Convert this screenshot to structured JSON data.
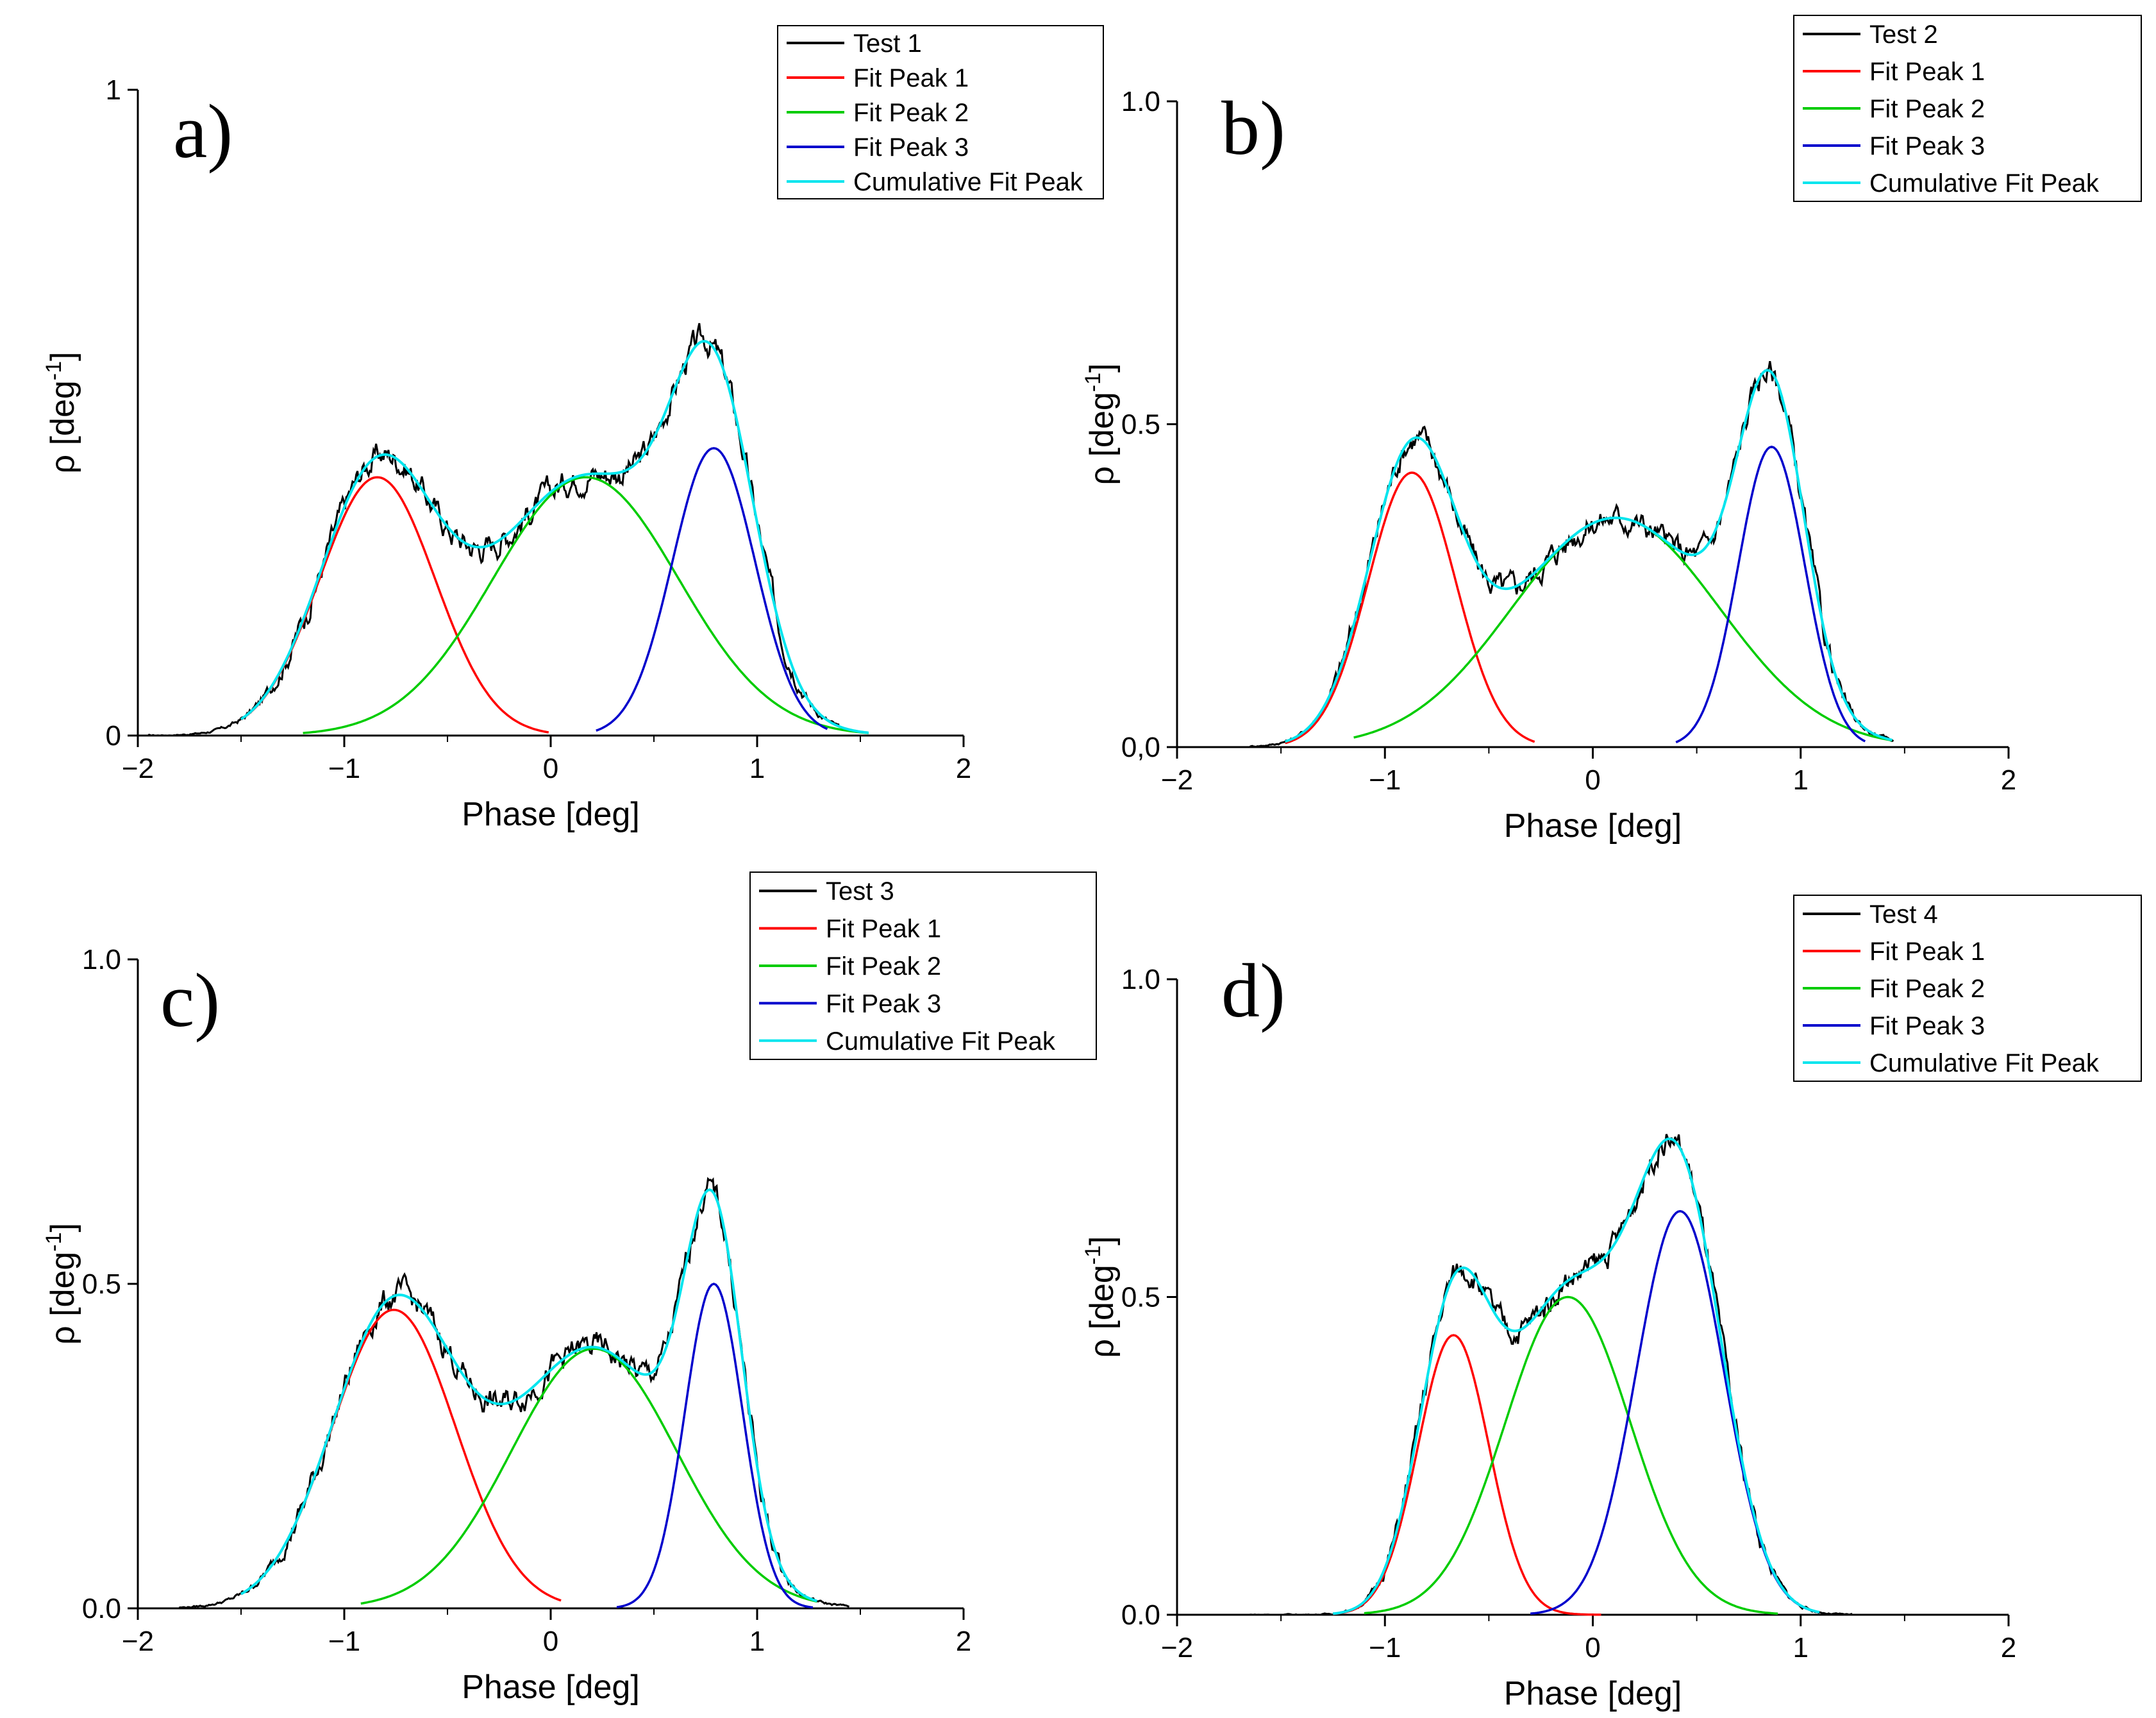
{
  "chart_data": [
    {
      "type": "line",
      "panel_label": "a)",
      "xlabel": "Phase [deg]",
      "ylabel": "ρ [deg",
      "ylabel_sup": "-1",
      "ylabel_end": "]",
      "xlim": [
        -2,
        2
      ],
      "ylim": [
        0,
        1
      ],
      "xticks": [
        -2,
        -1,
        0,
        1,
        2
      ],
      "xtick_labels": [
        "−2",
        "−1",
        "0",
        "1",
        "2"
      ],
      "yticks": [
        0,
        1
      ],
      "ytick_labels": [
        "0",
        "1"
      ],
      "legend_position": "top-right",
      "legend": [
        "Test 1",
        "Fit Peak 1",
        "Fit Peak 2",
        "Fit Peak 3",
        "Cumulative Fit Peak"
      ],
      "colors": {
        "data": "#000000",
        "peak1": "#ff0000",
        "peak2": "#00cc00",
        "peak3": "#0000cc",
        "cumulative": "#00e5ee"
      },
      "peaks": [
        {
          "name": "Fit Peak 1",
          "center": -0.84,
          "sigma": 0.28,
          "height": 0.4,
          "range": [
            -1.5,
            0.0
          ]
        },
        {
          "name": "Fit Peak 2",
          "center": 0.17,
          "sigma": 0.45,
          "height": 0.4,
          "range": [
            -1.2,
            1.55
          ]
        },
        {
          "name": "Fit Peak 3",
          "center": 0.79,
          "sigma": 0.2,
          "height": 0.445,
          "range": [
            0.22,
            1.35
          ]
        }
      ],
      "data_range": [
        -1.95,
        1.4
      ]
    },
    {
      "type": "line",
      "panel_label": "b)",
      "xlabel": "Phase [deg]",
      "ylabel": "ρ [deg",
      "ylabel_sup": "-1",
      "ylabel_end": "]",
      "xlim": [
        -2,
        2
      ],
      "ylim": [
        0,
        1.0
      ],
      "xticks": [
        -2,
        -1,
        0,
        1,
        2
      ],
      "xtick_labels": [
        "−2",
        "−1",
        "0",
        "1",
        "2"
      ],
      "yticks": [
        0,
        0.5,
        1.0
      ],
      "ytick_labels": [
        "0,0",
        "0.5",
        "1.0"
      ],
      "legend_position": "top-right",
      "legend": [
        "Test 2",
        "Fit Peak 1",
        "Fit Peak 2",
        "Fit Peak 3",
        "Cumulative Fit Peak"
      ],
      "colors": {
        "data": "#000000",
        "peak1": "#ff0000",
        "peak2": "#00cc00",
        "peak3": "#0000cc",
        "cumulative": "#00e5ee"
      },
      "peaks": [
        {
          "name": "Fit Peak 1",
          "center": -0.87,
          "sigma": 0.21,
          "height": 0.425,
          "range": [
            -1.48,
            -0.27
          ]
        },
        {
          "name": "Fit Peak 2",
          "center": 0.11,
          "sigma": 0.5,
          "height": 0.355,
          "range": [
            -1.15,
            1.45
          ]
        },
        {
          "name": "Fit Peak 3",
          "center": 0.86,
          "sigma": 0.16,
          "height": 0.465,
          "range": [
            0.4,
            1.32
          ]
        }
      ],
      "data_range": [
        -1.65,
        1.45
      ]
    },
    {
      "type": "line",
      "panel_label": "c)",
      "xlabel": "Phase [deg]",
      "ylabel": "ρ [deg",
      "ylabel_sup": "-1",
      "ylabel_end": "]",
      "xlim": [
        -2,
        2
      ],
      "ylim": [
        0,
        1.0
      ],
      "xticks": [
        -2,
        -1,
        0,
        1,
        2
      ],
      "xtick_labels": [
        "−2",
        "−1",
        "0",
        "1",
        "2"
      ],
      "yticks": [
        0,
        0.5,
        1.0
      ],
      "ytick_labels": [
        "0.0",
        "0.5",
        "1.0"
      ],
      "legend_position": "top-right",
      "legend": [
        "Test 3",
        "Fit Peak 1",
        "Fit Peak 2",
        "Fit Peak 3",
        "Cumulative Fit Peak"
      ],
      "colors": {
        "data": "#000000",
        "peak1": "#ff0000",
        "peak2": "#00cc00",
        "peak3": "#0000cc",
        "cumulative": "#00e5ee"
      },
      "peaks": [
        {
          "name": "Fit Peak 1",
          "center": -0.76,
          "sigma": 0.3,
          "height": 0.46,
          "range": [
            -1.5,
            0.06
          ]
        },
        {
          "name": "Fit Peak 2",
          "center": 0.21,
          "sigma": 0.4,
          "height": 0.4,
          "range": [
            -0.92,
            1.3
          ]
        },
        {
          "name": "Fit Peak 3",
          "center": 0.79,
          "sigma": 0.14,
          "height": 0.5,
          "range": [
            0.32,
            1.28
          ]
        }
      ],
      "data_range": [
        -1.8,
        1.45
      ]
    },
    {
      "type": "line",
      "panel_label": "d)",
      "xlabel": "Phase [deg]",
      "ylabel": "ρ [deg",
      "ylabel_sup": "-1",
      "ylabel_end": "]",
      "xlim": [
        -2,
        2
      ],
      "ylim": [
        0,
        1.0
      ],
      "xticks": [
        -2,
        -1,
        0,
        1,
        2
      ],
      "xtick_labels": [
        "−2",
        "−1",
        "0",
        "1",
        "2"
      ],
      "yticks": [
        0,
        0.5,
        1.0
      ],
      "ytick_labels": [
        "0.0",
        "0.5",
        "1.0"
      ],
      "legend_position": "top-right",
      "legend": [
        "Test 4",
        "Fit Peak 1",
        "Fit Peak 2",
        "Fit Peak 3",
        "Cumulative Fit Peak"
      ],
      "colors": {
        "data": "#000000",
        "peak1": "#ff0000",
        "peak2": "#00cc00",
        "peak3": "#0000cc",
        "cumulative": "#00e5ee"
      },
      "peaks": [
        {
          "name": "Fit Peak 1",
          "center": -0.67,
          "sigma": 0.17,
          "height": 0.44,
          "range": [
            -1.25,
            0.05
          ]
        },
        {
          "name": "Fit Peak 2",
          "center": -0.12,
          "sigma": 0.3,
          "height": 0.5,
          "range": [
            -1.1,
            0.9
          ]
        },
        {
          "name": "Fit Peak 3",
          "center": 0.42,
          "sigma": 0.21,
          "height": 0.635,
          "range": [
            -0.3,
            1.1
          ]
        }
      ],
      "data_range": [
        -1.65,
        1.25
      ]
    }
  ]
}
